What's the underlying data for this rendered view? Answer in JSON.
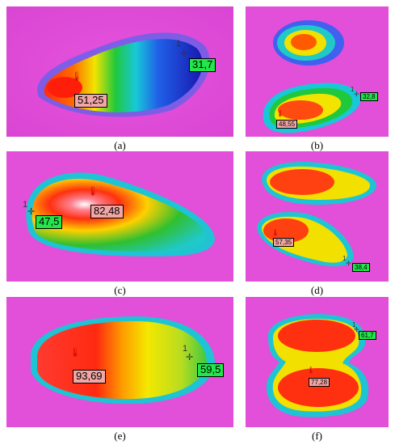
{
  "panels": [
    {
      "caption": "(a)",
      "hot": {
        "value": "51,25"
      },
      "cold": {
        "value": "31,7",
        "marker": "1"
      }
    },
    {
      "caption": "(b)",
      "hot": {
        "value": "48,55"
      },
      "cold": {
        "value": "32,8",
        "marker": "1"
      }
    },
    {
      "caption": "(c)",
      "hot": {
        "value": "82,48"
      },
      "cold": {
        "value": "47,5",
        "marker": "1"
      }
    },
    {
      "caption": "(d)",
      "hot": {
        "value": "57,35"
      },
      "cold": {
        "value": "38,4",
        "marker": "1"
      }
    },
    {
      "caption": "(e)",
      "hot": {
        "value": "93,69"
      },
      "cold": {
        "value": "59,5",
        "marker": "1"
      }
    },
    {
      "caption": "(f)",
      "hot": {
        "value": "77,28"
      },
      "cold": {
        "value": "61,7",
        "marker": "1"
      }
    }
  ],
  "colors": {
    "background": "#e24fd8",
    "hot_label_fill": "#f3a6a6",
    "cold_label_fill": "#22e64a"
  }
}
